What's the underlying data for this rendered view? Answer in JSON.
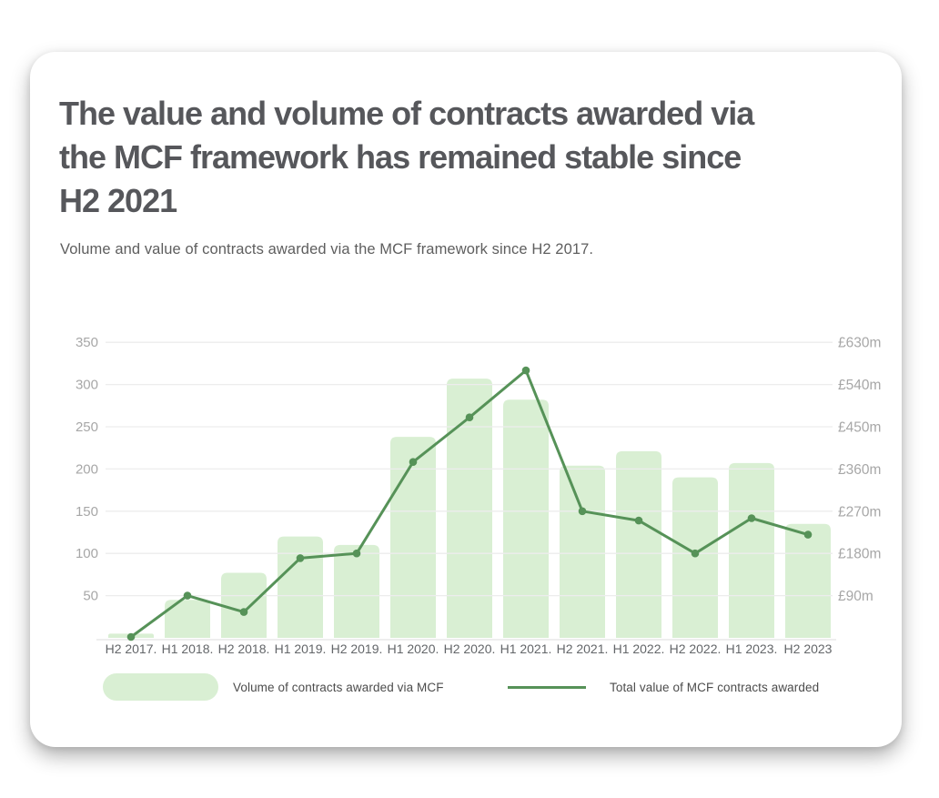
{
  "card": {
    "title": "The value and volume of contracts awarded via the MCF framework has remained stable since H2 2021",
    "title_lines": [
      "The value and volume of contracts awarded via",
      "the MCF framework has remained stable since",
      "H2 2021"
    ],
    "subtitle": "Volume and value of contracts awarded via the MCF framework since H2 2017."
  },
  "legend": {
    "bar_label": "Volume of contracts awarded via MCF",
    "line_label": "Total value of MCF contracts awarded"
  },
  "colors": {
    "bar": "#d9efd3",
    "line": "#569258",
    "grid": "#ededed",
    "axis_baseline": "#e4e4e4",
    "y_tick_text": "#a7a7a7",
    "x_tick_text": "#636669",
    "title_text": "#56575b",
    "subtitle_text": "#5e5e5e",
    "legend_text": "#4c4c4c",
    "card_background": "#ffffff"
  },
  "chart_data": {
    "type": "combo",
    "subtypes": [
      "bar",
      "line"
    ],
    "categories": [
      "H2 2017.",
      "H1 2018.",
      "H2 2018.",
      "H1 2019.",
      "H2 2019.",
      "H1 2020.",
      "H2 2020.",
      "H1 2021.",
      "H2 2021.",
      "H1 2022.",
      "H2 2022.",
      "H1 2023.",
      "H2 2023"
    ],
    "series": [
      {
        "name": "Volume of contracts awarded via MCF",
        "type": "bar",
        "axis": "left",
        "values": [
          5,
          45,
          77,
          120,
          110,
          238,
          307,
          282,
          204,
          221,
          190,
          207,
          135
        ]
      },
      {
        "name": "Total value of MCF contracts awarded",
        "type": "line",
        "axis": "right",
        "unit": "£m",
        "values": [
          2,
          90,
          55,
          170,
          180,
          375,
          470,
          570,
          270,
          250,
          180,
          255,
          220
        ]
      }
    ],
    "left_axis": {
      "ticks": [
        50,
        100,
        150,
        200,
        250,
        300,
        350
      ],
      "range": [
        0,
        350
      ]
    },
    "right_axis": {
      "tick_labels": [
        "£90m",
        "£180m",
        "£270m",
        "£360m",
        "£450m",
        "£540m",
        "£630m"
      ],
      "range_gbp_m": [
        0,
        630
      ]
    },
    "grid": "horizontal",
    "legend_position": "bottom"
  }
}
